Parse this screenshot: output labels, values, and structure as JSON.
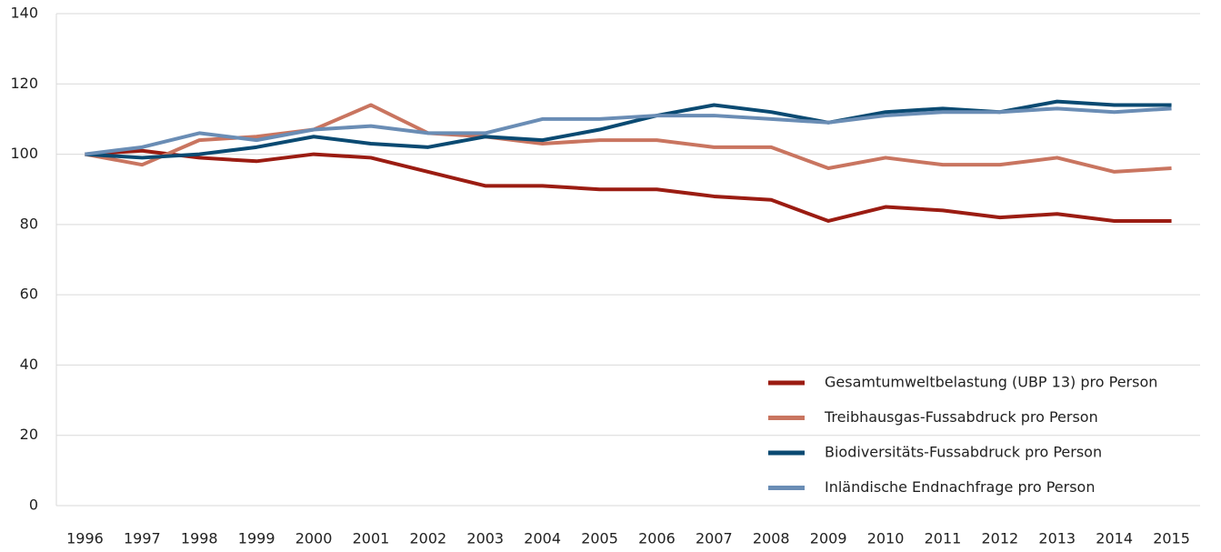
{
  "chart_data": {
    "type": "line",
    "categories": [
      "1996",
      "1997",
      "1998",
      "1999",
      "2000",
      "2001",
      "2002",
      "2003",
      "2004",
      "2005",
      "2006",
      "2007",
      "2008",
      "2009",
      "2010",
      "2011",
      "2012",
      "2013",
      "2014",
      "2015"
    ],
    "series": [
      {
        "name": "Gesamtumweltbelastung (UBP 13) pro Person",
        "color": "#9b1c12",
        "values": [
          100,
          101,
          99,
          98,
          100,
          99,
          95,
          91,
          91,
          90,
          90,
          88,
          87,
          81,
          85,
          84,
          82,
          83,
          81,
          81
        ]
      },
      {
        "name": "Treibhausgas-Fussabdruck pro Person",
        "color": "#c97560",
        "values": [
          100,
          97,
          104,
          105,
          107,
          114,
          106,
          105,
          103,
          104,
          104,
          102,
          102,
          96,
          99,
          97,
          97,
          99,
          95,
          96
        ]
      },
      {
        "name": "Biodiversitäts-Fussabdruck pro Person",
        "color": "#0a4a72",
        "values": [
          100,
          99,
          100,
          102,
          105,
          103,
          102,
          105,
          104,
          107,
          111,
          114,
          112,
          109,
          112,
          113,
          112,
          115,
          114,
          114
        ]
      },
      {
        "name": "Inländische Endnachfrage pro Person",
        "color": "#6a8db5",
        "values": [
          100,
          102,
          106,
          104,
          107,
          108,
          106,
          106,
          110,
          110,
          111,
          111,
          110,
          109,
          111,
          112,
          112,
          113,
          112,
          113
        ]
      }
    ],
    "ylim": [
      0,
      140
    ],
    "yticks": [
      0,
      20,
      40,
      60,
      80,
      100,
      120,
      140
    ],
    "grid": true,
    "legend": "bottom-right"
  }
}
